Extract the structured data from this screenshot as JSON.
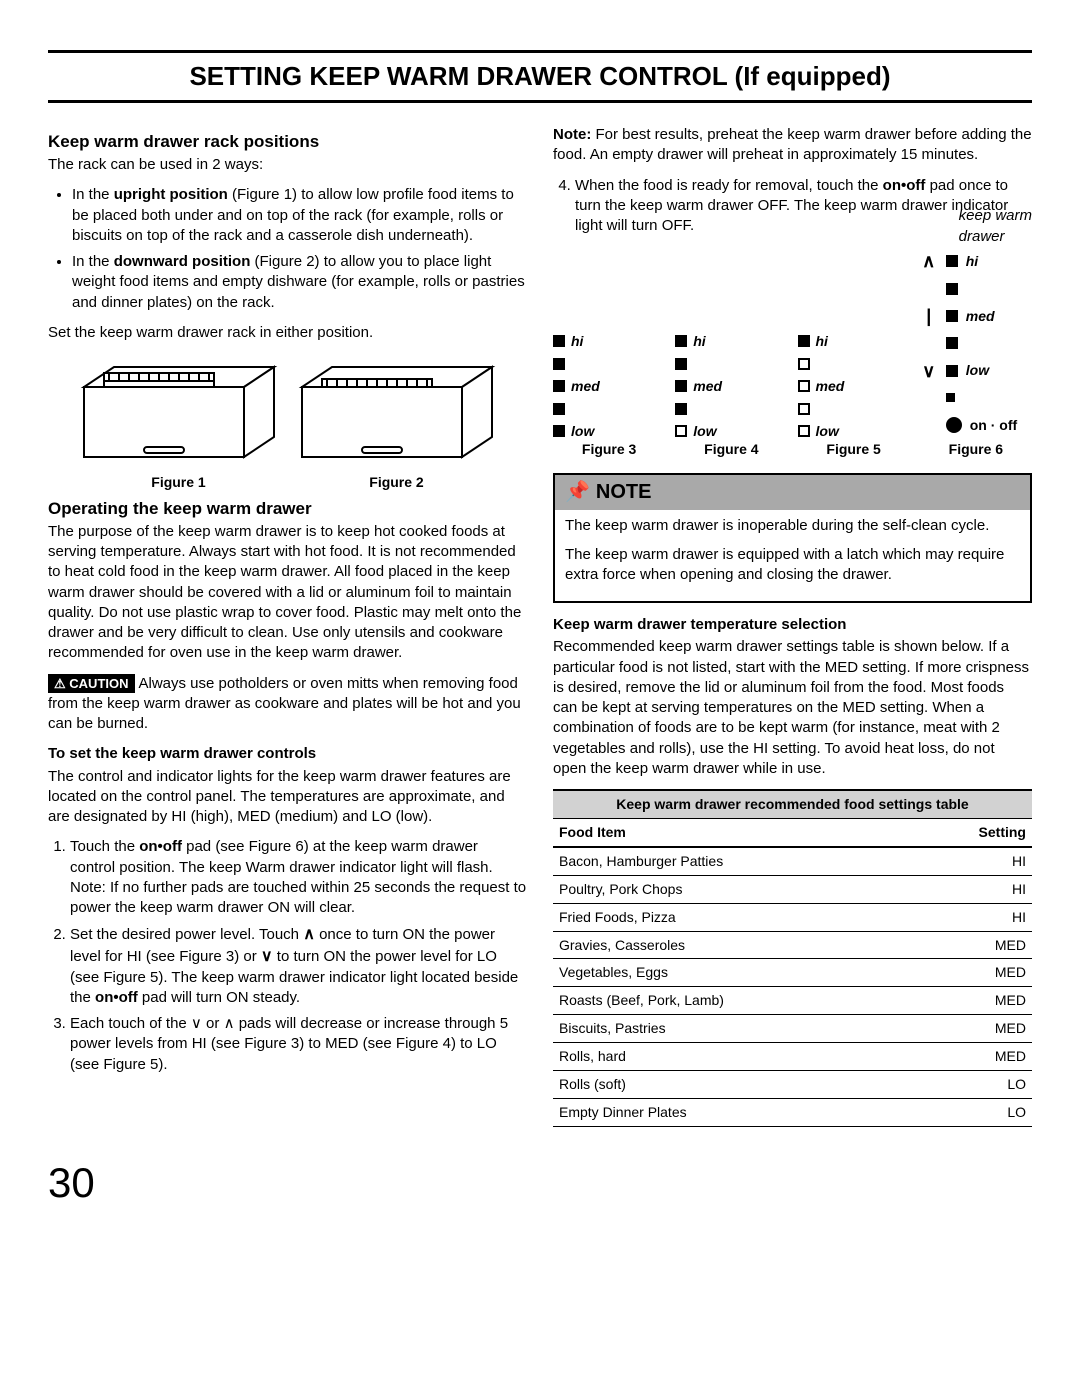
{
  "title": "SETTING KEEP WARM DRAWER CONTROL (If equipped)",
  "page_number": "30",
  "left": {
    "h_rack": "Keep warm drawer rack positions",
    "rack_intro": "The rack can be used in 2 ways:",
    "rack_b1_pre": "In the ",
    "rack_b1_bold": "upright position",
    "rack_b1_post": " (Figure 1) to allow low profile food items to be placed both under and on top of the rack (for example, rolls or biscuits on top of the rack and a casserole dish underneath).",
    "rack_b2_pre": "In the ",
    "rack_b2_bold": "downward position",
    "rack_b2_post": " (Figure 2) to allow you to place light weight food items and empty dishware (for example, rolls or pastries and dinner plates) on the rack.",
    "rack_set": "Set the keep warm drawer rack in either position.",
    "fig1": "Figure 1",
    "fig2": "Figure 2",
    "h_op": "Operating the keep warm drawer",
    "op_p1": "The purpose of the keep warm drawer is to keep hot cooked foods at serving temperature. Always start with hot food. It is not recommended to heat cold food in the keep warm drawer. All food placed in the keep warm drawer should be covered with a lid or aluminum foil to maintain quality. Do not use plastic wrap to cover food. Plastic may melt onto the drawer and be very difficult to clean. Use only utensils and cookware recommended for oven use in the keep warm drawer.",
    "caution_label": "CAUTION",
    "caution_txt": "Always use potholders or oven mitts when removing food from the keep warm drawer as cookware and plates will be hot and you can be burned.",
    "sub_set": "To set the keep warm drawer controls",
    "set_p": "The control and indicator lights for the keep warm drawer features are located on the control panel. The temperatures are approximate, and are designated by HI (high), MED (medium) and LO (low).",
    "step1_a": "Touch the ",
    "step1_b": "on•off",
    "step1_c": " pad (see Figure 6) at the keep warm drawer control position. The keep Warm drawer indicator light will flash. Note: If no further pads are touched within 25 seconds the request to power the keep warm drawer ON will clear.",
    "step2_a": "Set the desired power level. Touch ",
    "step2_b": " once to turn ON the power level for HI (see Figure 3) or ",
    "step2_c": " to turn ON the power level for LO (see Figure 5). The keep warm drawer indicator light located beside the ",
    "step2_d": "on•off",
    "step2_e": " pad will turn ON steady.",
    "step3": "Each touch of the ∨ or ∧ pads will decrease or increase through 5 power levels from HI (see Figure 3) to MED (see Figure 4) to LO (see Figure 5)."
  },
  "right": {
    "note_pre": "Note:",
    "note_txt": " For best results, preheat the keep warm drawer before adding the food. An empty drawer will preheat in approximately 15 minutes.",
    "step4_a": "When the food is ready for removal, touch the ",
    "step4_b": "on•off",
    "step4_c": " pad once to turn the keep warm drawer OFF. The keep warm drawer indicator light will turn OFF.",
    "kw_label": "keep warm\ndrawer",
    "labels": {
      "hi": "hi",
      "med": "med",
      "low": "low",
      "onoff": "on · off"
    },
    "fig3": "Figure 3",
    "fig4": "Figure 4",
    "fig5": "Figure 5",
    "fig6": "Figure 6",
    "notebox_head": "NOTE",
    "notebox_p1": "The keep warm drawer is inoperable during the self-clean cycle.",
    "notebox_p2": "The keep warm drawer is equipped with a latch which may require extra force when opening and closing the drawer.",
    "sub_temp": "Keep warm drawer temperature selection",
    "temp_p": "Recommended keep warm drawer settings table is shown below. If a particular food is not listed, start with the MED setting. If more crispness is desired, remove the lid or aluminum foil from the food. Most foods can be kept at serving temperatures on the MED setting. When a combination of foods are to be kept warm (for instance, meat with 2 vegetables and rolls), use the HI setting. To avoid heat loss, do not open the keep warm drawer while in use.",
    "table": {
      "caption": "Keep warm drawer recommended food settings table",
      "col1": "Food Item",
      "col2": "Setting",
      "rows": [
        [
          "Bacon, Hamburger Patties",
          "HI"
        ],
        [
          "Poultry, Pork Chops",
          "HI"
        ],
        [
          "Fried Foods, Pizza",
          "HI"
        ],
        [
          "Gravies, Casseroles",
          "MED"
        ],
        [
          "Vegetables, Eggs",
          "MED"
        ],
        [
          "Roasts (Beef, Pork, Lamb)",
          "MED"
        ],
        [
          "Biscuits, Pastries",
          "MED"
        ],
        [
          "Rolls, hard",
          "MED"
        ],
        [
          "Rolls (soft)",
          "LO"
        ],
        [
          "Empty Dinner Plates",
          "LO"
        ]
      ]
    }
  },
  "figures_345": [
    [
      true,
      true,
      true,
      true,
      true
    ],
    [
      true,
      true,
      true,
      true,
      false
    ],
    [
      true,
      false,
      false,
      false,
      false
    ]
  ],
  "figure6_rows": [
    {
      "left": "∧",
      "sq": "filled",
      "label": "hi"
    },
    {
      "left": "",
      "sq": "filled",
      "label": ""
    },
    {
      "left": "|",
      "sq": "filled",
      "label": "med"
    },
    {
      "left": "",
      "sq": "filled",
      "label": ""
    },
    {
      "left": "∨",
      "sq": "filled",
      "label": "low"
    },
    {
      "left": "",
      "sq": "",
      "label": ""
    },
    {
      "left": "",
      "sq": "small",
      "label": ""
    }
  ]
}
